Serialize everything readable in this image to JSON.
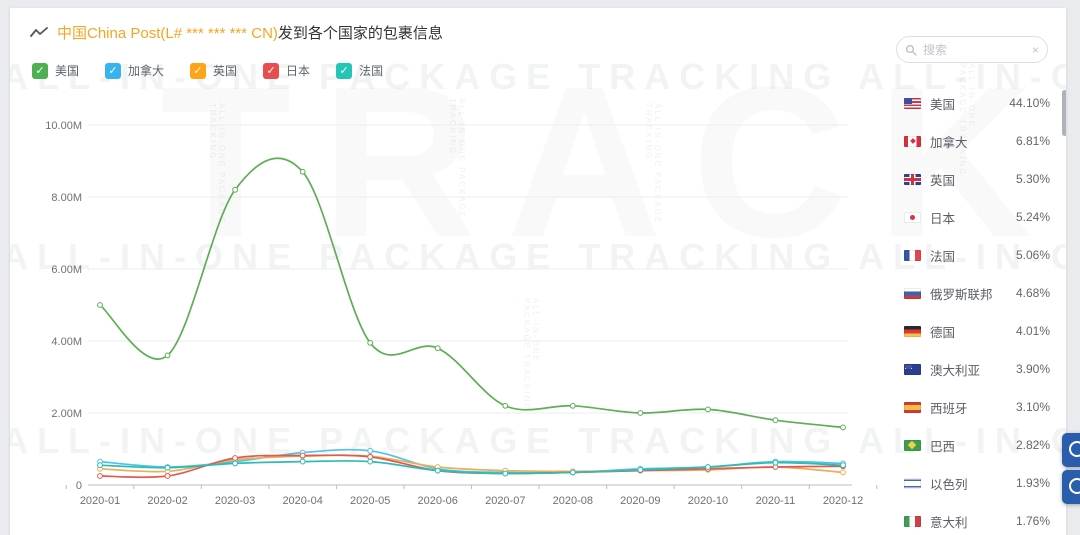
{
  "header": {
    "title_highlight": "中国China Post(L# *** *** *** CN)",
    "title_rest": "发到各个国家的包裹信息"
  },
  "legend": [
    {
      "label": "美国",
      "checkbox_color": "#4db052"
    },
    {
      "label": "加拿大",
      "checkbox_color": "#36b4ef"
    },
    {
      "label": "英国",
      "checkbox_color": "#ffa416"
    },
    {
      "label": "日本",
      "checkbox_color": "#e94e4e"
    },
    {
      "label": "法国",
      "checkbox_color": "#23c6b4"
    }
  ],
  "search": {
    "placeholder": "搜索",
    "clear_icon": "×"
  },
  "sidebar": {
    "countries": [
      {
        "flag": "us",
        "name": "美国",
        "percent": "44.10%"
      },
      {
        "flag": "ca",
        "name": "加拿大",
        "percent": "6.81%"
      },
      {
        "flag": "gb",
        "name": "英国",
        "percent": "5.30%"
      },
      {
        "flag": "jp",
        "name": "日本",
        "percent": "5.24%"
      },
      {
        "flag": "fr",
        "name": "法国",
        "percent": "5.06%"
      },
      {
        "flag": "ru",
        "name": "俄罗斯联邦",
        "percent": "4.68%"
      },
      {
        "flag": "de",
        "name": "德国",
        "percent": "4.01%"
      },
      {
        "flag": "au",
        "name": "澳大利亚",
        "percent": "3.90%"
      },
      {
        "flag": "es",
        "name": "西班牙",
        "percent": "3.10%"
      },
      {
        "flag": "br",
        "name": "巴西",
        "percent": "2.82%"
      },
      {
        "flag": "il",
        "name": "以色列",
        "percent": "1.93%"
      },
      {
        "flag": "it",
        "name": "意大利",
        "percent": "1.76%"
      }
    ]
  },
  "watermark": {
    "text": "ALL-IN-ONE PACKAGE TRACKING",
    "big_text": "TRACK"
  },
  "chart_data": {
    "type": "line",
    "title": "中国China Post(L# *** *** *** CN)发到各个国家的包裹信息",
    "x": [
      "2020-01",
      "2020-02",
      "2020-03",
      "2020-04",
      "2020-05",
      "2020-06",
      "2020-07",
      "2020-08",
      "2020-09",
      "2020-10",
      "2020-11",
      "2020-12"
    ],
    "series": [
      {
        "name": "美国",
        "color": "#5dae54",
        "values": [
          5.0,
          3.6,
          8.2,
          8.7,
          3.95,
          3.8,
          2.2,
          2.2,
          2.0,
          2.1,
          1.8,
          1.6
        ]
      },
      {
        "name": "加拿大",
        "color": "#4ec3ea",
        "values": [
          0.65,
          0.5,
          0.65,
          0.9,
          0.95,
          0.45,
          0.35,
          0.35,
          0.45,
          0.5,
          0.65,
          0.6
        ]
      },
      {
        "name": "英国",
        "color": "#ecae57",
        "values": [
          0.45,
          0.38,
          0.7,
          0.8,
          0.8,
          0.5,
          0.4,
          0.38,
          0.4,
          0.42,
          0.5,
          0.35
        ]
      },
      {
        "name": "日本",
        "color": "#e05a52",
        "values": [
          0.25,
          0.25,
          0.75,
          0.82,
          0.78,
          0.4,
          0.32,
          0.35,
          0.4,
          0.45,
          0.5,
          0.52
        ]
      },
      {
        "name": "法国",
        "color": "#2cbdb0",
        "values": [
          0.55,
          0.48,
          0.6,
          0.65,
          0.65,
          0.4,
          0.32,
          0.35,
          0.42,
          0.5,
          0.62,
          0.55
        ]
      }
    ],
    "unit": "millions",
    "ylim": [
      0,
      10
    ],
    "yticks": [
      0,
      2,
      4,
      6,
      8,
      10
    ],
    "ytick_labels": [
      "0",
      "2.00M",
      "4.00M",
      "6.00M",
      "8.00M",
      "10.00M"
    ],
    "xlabel": "",
    "ylabel": "",
    "grid": true,
    "legend_position": "top-left"
  }
}
